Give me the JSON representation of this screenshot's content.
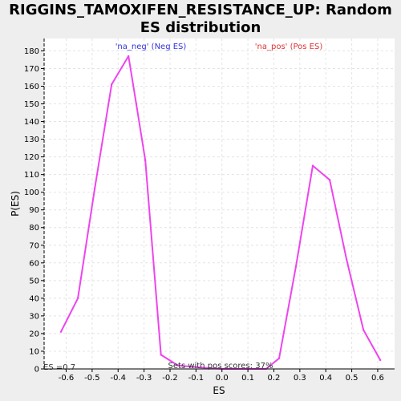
{
  "chart_data": {
    "type": "line",
    "title": "RIGGINS_TAMOXIFEN_RESISTANCE_UP: Random ES distribution",
    "xlabel": "ES",
    "ylabel": "P(ES)",
    "xlim": [
      -0.685,
      0.665
    ],
    "ylim": [
      0,
      187
    ],
    "x_ticks": [
      -0.6,
      -0.5,
      -0.4,
      -0.3,
      -0.2,
      -0.1,
      0.0,
      0.1,
      0.2,
      0.3,
      0.4,
      0.5,
      0.6
    ],
    "x_tick_labels": [
      "-0.6",
      "-0.5",
      "-0.4",
      "-0.3",
      "-0.2",
      "-0.1",
      "0.0",
      "0.1",
      "0.2",
      "0.3",
      "0.4",
      "0.5",
      "0.6"
    ],
    "y_ticks": [
      0,
      10,
      20,
      30,
      40,
      50,
      60,
      70,
      80,
      90,
      100,
      110,
      120,
      130,
      140,
      150,
      160,
      170,
      180
    ],
    "grid": true,
    "series": [
      {
        "color": "#ee44ee",
        "x": [
          -0.62,
          -0.555,
          -0.49,
          -0.425,
          -0.36,
          -0.33,
          -0.295,
          -0.235,
          -0.17,
          -0.1,
          0.0,
          0.1,
          0.17,
          0.22,
          0.285,
          0.35,
          0.415,
          0.48,
          0.545,
          0.61
        ],
        "y": [
          21,
          40,
          102,
          161,
          177,
          150,
          118,
          8,
          2,
          1,
          0,
          0,
          0,
          6,
          58,
          115,
          107,
          62,
          22,
          5
        ]
      }
    ],
    "annotations": {
      "neg_label": "'na_neg' (Neg ES)",
      "pos_label": "'na_pos' (Pos ES)",
      "pos_scores": "Sets with pos scores: 37%",
      "es_marker": "ES =0.7"
    }
  }
}
